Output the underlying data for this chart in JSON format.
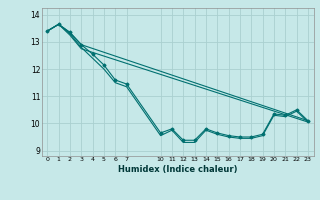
{
  "xlabel": "Humidex (Indice chaleur)",
  "bg_color": "#c6e8e8",
  "grid_color": "#aad0d0",
  "line_color": "#007070",
  "xlim": [
    -0.5,
    23.5
  ],
  "ylim": [
    8.8,
    14.25
  ],
  "yticks": [
    9,
    10,
    11,
    12,
    13,
    14
  ],
  "xtick_positions": [
    0,
    1,
    2,
    3,
    4,
    5,
    6,
    7,
    10,
    11,
    12,
    13,
    14,
    15,
    16,
    17,
    18,
    19,
    20,
    21,
    22,
    23
  ],
  "xtick_labels": [
    "0",
    "1",
    "2",
    "3",
    "4",
    "5",
    "6",
    "7",
    "10",
    "11",
    "12",
    "13",
    "14",
    "15",
    "16",
    "17",
    "18",
    "19",
    "20",
    "21",
    "22",
    "23"
  ],
  "series": [
    {
      "x": [
        0,
        1,
        2,
        3,
        4,
        5,
        6,
        7,
        10,
        11,
        12,
        13,
        14,
        15,
        16,
        17,
        18,
        19,
        20,
        21,
        22,
        23
      ],
      "y": [
        13.4,
        13.65,
        13.35,
        12.9,
        12.55,
        12.15,
        11.6,
        11.45,
        9.65,
        9.8,
        9.38,
        9.38,
        9.8,
        9.65,
        9.55,
        9.5,
        9.5,
        9.6,
        10.35,
        10.3,
        10.5,
        10.1
      ],
      "marker": true
    },
    {
      "x": [
        0,
        1,
        2,
        3,
        23
      ],
      "y": [
        13.4,
        13.65,
        13.35,
        12.9,
        10.1
      ],
      "marker": false
    },
    {
      "x": [
        0,
        1,
        2,
        3,
        23
      ],
      "y": [
        13.4,
        13.65,
        13.25,
        12.75,
        10.05
      ],
      "marker": false
    },
    {
      "x": [
        0,
        1,
        2,
        3,
        4,
        5,
        6,
        7,
        10,
        11,
        12,
        13,
        14,
        15,
        16,
        17,
        18,
        19,
        20,
        21,
        22,
        23
      ],
      "y": [
        13.4,
        13.65,
        13.3,
        12.8,
        12.4,
        12.0,
        11.5,
        11.35,
        9.55,
        9.75,
        9.3,
        9.3,
        9.75,
        9.6,
        9.5,
        9.45,
        9.45,
        9.55,
        10.3,
        10.25,
        10.45,
        10.05
      ],
      "marker": false
    }
  ]
}
